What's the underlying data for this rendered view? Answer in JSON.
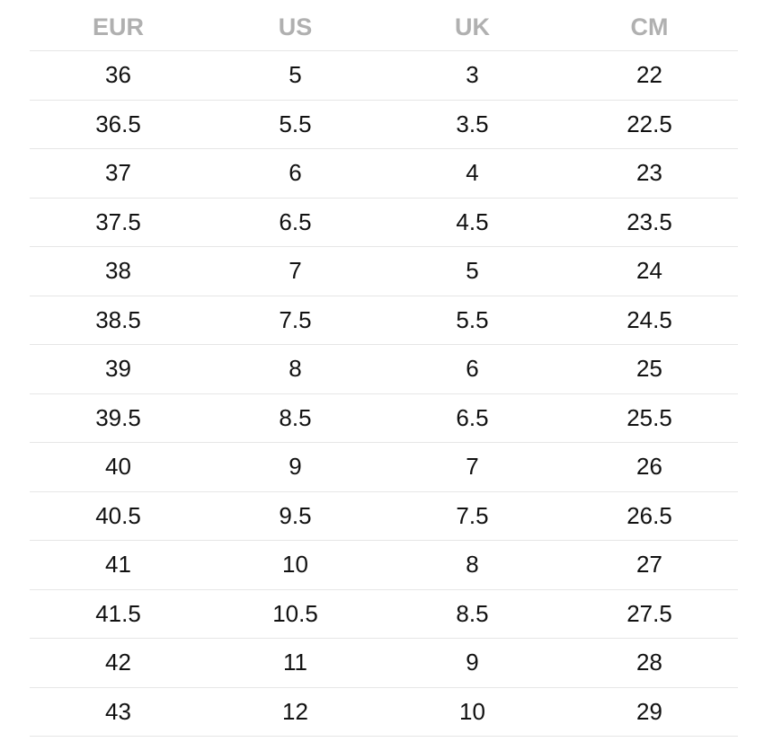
{
  "table": {
    "headers": [
      "EUR",
      "US",
      "UK",
      "CM"
    ],
    "rows": [
      [
        "36",
        "5",
        "3",
        "22"
      ],
      [
        "36.5",
        "5.5",
        "3.5",
        "22.5"
      ],
      [
        "37",
        "6",
        "4",
        "23"
      ],
      [
        "37.5",
        "6.5",
        "4.5",
        "23.5"
      ],
      [
        "38",
        "7",
        "5",
        "24"
      ],
      [
        "38.5",
        "7.5",
        "5.5",
        "24.5"
      ],
      [
        "39",
        "8",
        "6",
        "25"
      ],
      [
        "39.5",
        "8.5",
        "6.5",
        "25.5"
      ],
      [
        "40",
        "9",
        "7",
        "26"
      ],
      [
        "40.5",
        "9.5",
        "7.5",
        "26.5"
      ],
      [
        "41",
        "10",
        "8",
        "27"
      ],
      [
        "41.5",
        "10.5",
        "8.5",
        "27.5"
      ],
      [
        "42",
        "11",
        "9",
        "28"
      ],
      [
        "43",
        "12",
        "10",
        "29"
      ]
    ]
  },
  "colors": {
    "header_text": "#b0b0b0",
    "cell_text": "#111111",
    "row_divider": "#e6e6e6",
    "background": "#ffffff"
  }
}
